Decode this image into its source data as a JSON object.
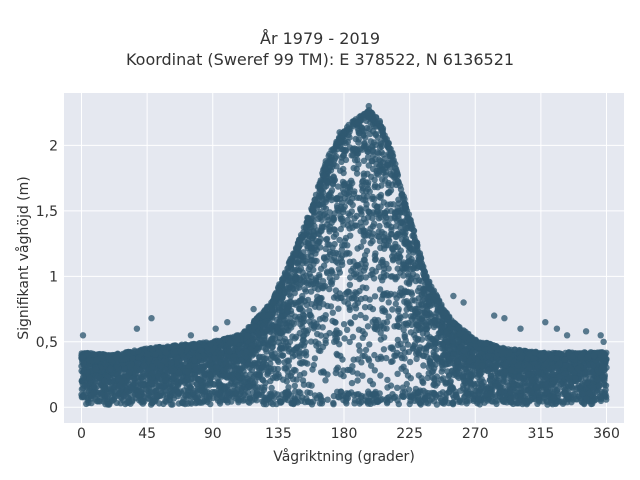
{
  "chart_data": {
    "type": "scatter",
    "title_lines": [
      "År 1979 - 2019",
      "Koordinat (Sweref 99 TM): E 378522, N 6136521"
    ],
    "xlabel": "Vågriktning (grader)",
    "ylabel": "Signifikant våghöjd (m)",
    "xlim": [
      -12,
      372
    ],
    "ylim": [
      -0.12,
      2.4
    ],
    "x_ticks": [
      0,
      45,
      90,
      135,
      180,
      225,
      270,
      315,
      360
    ],
    "x_tick_labels": [
      "0",
      "45",
      "90",
      "135",
      "180",
      "225",
      "270",
      "315",
      "360"
    ],
    "y_ticks": [
      0,
      0.5,
      1,
      1.5,
      2
    ],
    "y_tick_labels": [
      "0",
      "0,5",
      "1",
      "1,5",
      "2"
    ],
    "grid": true,
    "plot_background": "#e5e8f0",
    "marker_color": "#2f5871",
    "upper_envelope": {
      "x": [
        0,
        20,
        45,
        70,
        90,
        110,
        130,
        140,
        150,
        160,
        168,
        175,
        182,
        190,
        198,
        205,
        213,
        220,
        228,
        235,
        245,
        255,
        270,
        290,
        315,
        340,
        360
      ],
      "y": [
        0.42,
        0.4,
        0.45,
        0.48,
        0.5,
        0.56,
        0.8,
        1.05,
        1.3,
        1.6,
        1.9,
        2.05,
        2.15,
        2.22,
        2.28,
        2.18,
        1.95,
        1.65,
        1.35,
        1.05,
        0.82,
        0.65,
        0.52,
        0.45,
        0.42,
        0.42,
        0.42
      ]
    },
    "outliers": [
      {
        "x": 1,
        "y": 0.55
      },
      {
        "x": 48,
        "y": 0.68
      },
      {
        "x": 38,
        "y": 0.6
      },
      {
        "x": 75,
        "y": 0.55
      },
      {
        "x": 92,
        "y": 0.6
      },
      {
        "x": 100,
        "y": 0.65
      },
      {
        "x": 118,
        "y": 0.75
      },
      {
        "x": 128,
        "y": 0.7
      },
      {
        "x": 177,
        "y": 2.1
      },
      {
        "x": 197,
        "y": 2.3
      },
      {
        "x": 255,
        "y": 0.85
      },
      {
        "x": 262,
        "y": 0.8
      },
      {
        "x": 283,
        "y": 0.7
      },
      {
        "x": 290,
        "y": 0.68
      },
      {
        "x": 301,
        "y": 0.6
      },
      {
        "x": 318,
        "y": 0.65
      },
      {
        "x": 326,
        "y": 0.6
      },
      {
        "x": 333,
        "y": 0.55
      },
      {
        "x": 346,
        "y": 0.58
      },
      {
        "x": 356,
        "y": 0.55
      },
      {
        "x": 358,
        "y": 0.5
      }
    ]
  }
}
